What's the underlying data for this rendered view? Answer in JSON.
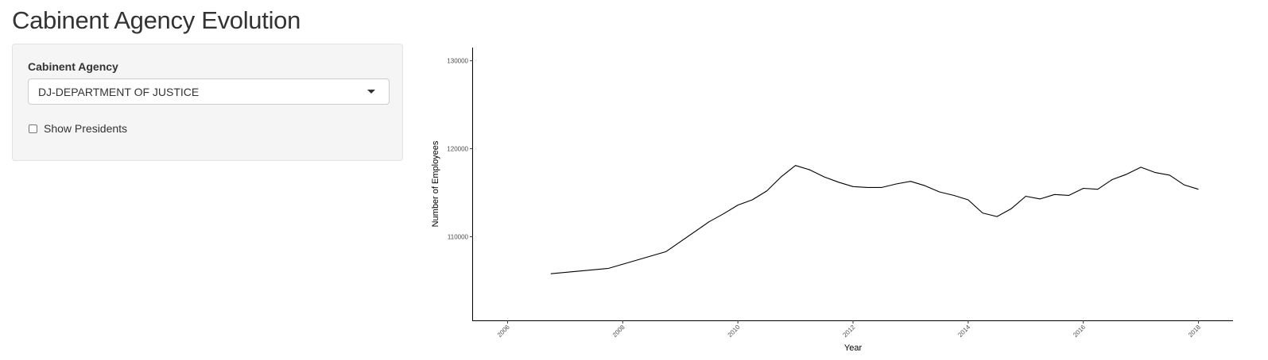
{
  "app": {
    "title": "Cabinent Agency Evolution"
  },
  "sidebar": {
    "agency_label": "Cabinent Agency",
    "agency_selected": "DJ-DEPARTMENT OF JUSTICE",
    "show_presidents_label": "Show Presidents",
    "show_presidents_checked": false
  },
  "chart_data": {
    "type": "line",
    "title": "",
    "xlabel": "Year",
    "ylabel": "Number of Employees",
    "xlim": [
      2005.4,
      2018.6
    ],
    "ylim": [
      100500,
      131500
    ],
    "x_ticks": [
      2006,
      2008,
      2010,
      2012,
      2014,
      2016,
      2018
    ],
    "x_tick_labels": [
      "2006",
      "2008",
      "2010",
      "2012",
      "2014",
      "2016",
      "2018"
    ],
    "y_ticks": [
      110000,
      120000,
      130000
    ],
    "y_tick_labels": [
      "110000",
      "120000",
      "130000"
    ],
    "grid": false,
    "legend": "none",
    "line_color": "#000000",
    "series": [
      {
        "x": [
          2006.75,
          2007.75,
          2008.75,
          2009.5,
          2009.75,
          2010.0,
          2010.25,
          2010.5,
          2010.75,
          2011.0,
          2011.25,
          2011.5,
          2011.75,
          2012.0,
          2012.25,
          2012.5,
          2012.75,
          2013.0,
          2013.25,
          2013.5,
          2013.75,
          2014.0,
          2014.25,
          2014.5,
          2014.75,
          2015.0,
          2015.25,
          2015.5,
          2015.75,
          2016.0,
          2016.25,
          2016.5,
          2016.75,
          2017.0,
          2017.25,
          2017.5,
          2017.75,
          2018.0
        ],
        "values": [
          105800,
          106400,
          108300,
          111700,
          112600,
          113600,
          114200,
          115200,
          116800,
          118100,
          117600,
          116800,
          116200,
          115700,
          115600,
          115600,
          116000,
          116300,
          115800,
          115100,
          114700,
          114200,
          112700,
          112300,
          113200,
          114600,
          114300,
          114800,
          114700,
          115500,
          115400,
          116500,
          117100,
          117900,
          117300,
          117000,
          115900,
          115400
        ]
      }
    ]
  }
}
